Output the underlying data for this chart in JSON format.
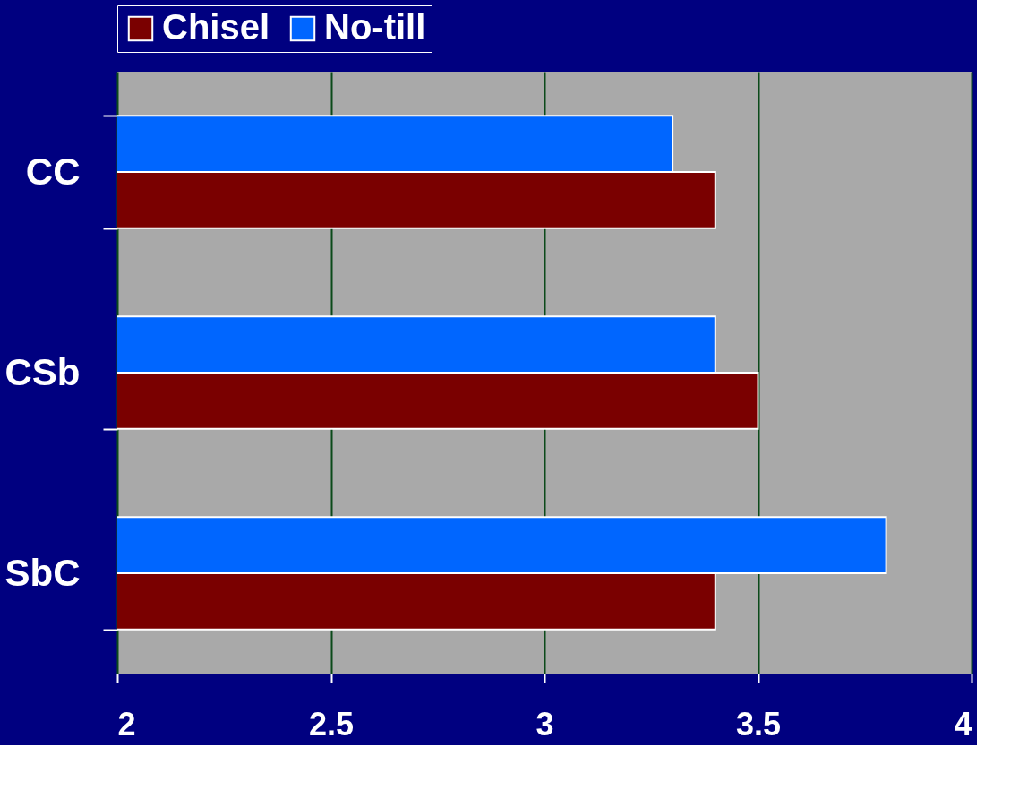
{
  "chart_data": {
    "type": "bar",
    "orientation": "horizontal",
    "categories": [
      "CC",
      "CSb",
      "SbC"
    ],
    "series": [
      {
        "name": "Chisel",
        "color": "#7a0000",
        "values": [
          3.4,
          3.5,
          3.4
        ]
      },
      {
        "name": "No-till",
        "color": "#0066ff",
        "values": [
          3.3,
          3.4,
          3.8
        ]
      }
    ],
    "xlim": [
      2,
      4
    ],
    "xticks": [
      2,
      2.5,
      3,
      3.5,
      4
    ],
    "grid": "x",
    "legend": "top"
  }
}
